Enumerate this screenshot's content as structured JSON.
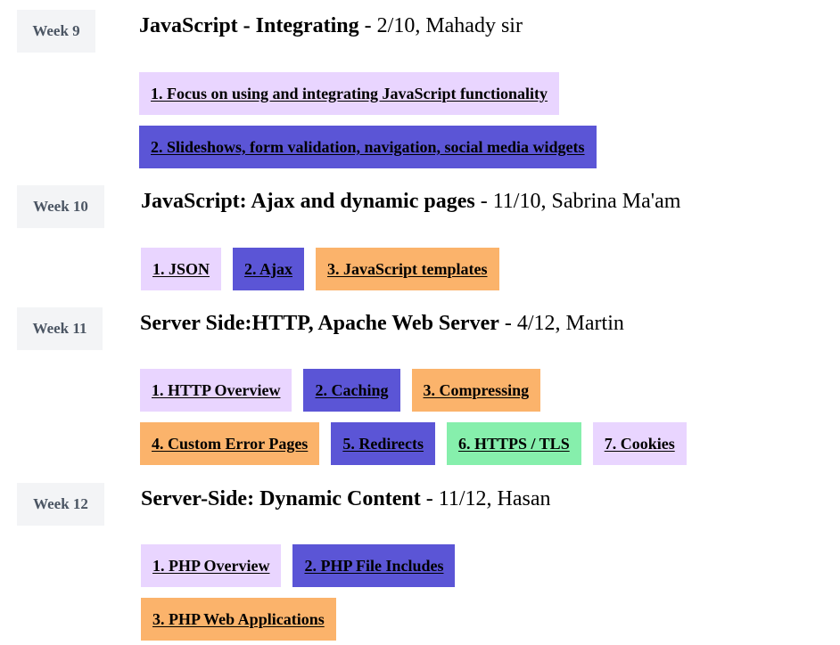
{
  "colors": {
    "lavender": "#e9d5ff",
    "indigo": "#5b55d6",
    "orange": "#fbb36b",
    "green": "#86efac",
    "badge_bg": "#f3f4f6",
    "badge_text": "#4b5563"
  },
  "weeks": [
    {
      "label": "Week 9",
      "title": "JavaScript - Integrating",
      "info": " - 2/10, Mahady sir",
      "topics": [
        "1. Focus on using and integrating JavaScript functionality",
        "2. Slideshows, form validation, navigation, social media widgets"
      ]
    },
    {
      "label": "Week 10",
      "title": "JavaScript: Ajax and dynamic pages",
      "info": " - 11/10, Sabrina Ma'am",
      "topics": [
        "1. JSON",
        "2. Ajax",
        "3. JavaScript templates"
      ]
    },
    {
      "label": "Week 11",
      "title": "Server Side:HTTP, Apache Web Server",
      "info": " - 4/12, Martin",
      "topics": [
        "1. HTTP Overview",
        "2. Caching",
        "3. Compressing",
        "4. Custom Error Pages",
        "5. Redirects",
        "6. HTTPS / TLS",
        "7. Cookies"
      ]
    },
    {
      "label": "Week 12",
      "title": "Server-Side: Dynamic Content",
      "info": " - 11/12, Hasan",
      "topics": [
        "1. PHP Overview",
        "2. PHP File Includes",
        "3. PHP Web Applications"
      ]
    }
  ]
}
